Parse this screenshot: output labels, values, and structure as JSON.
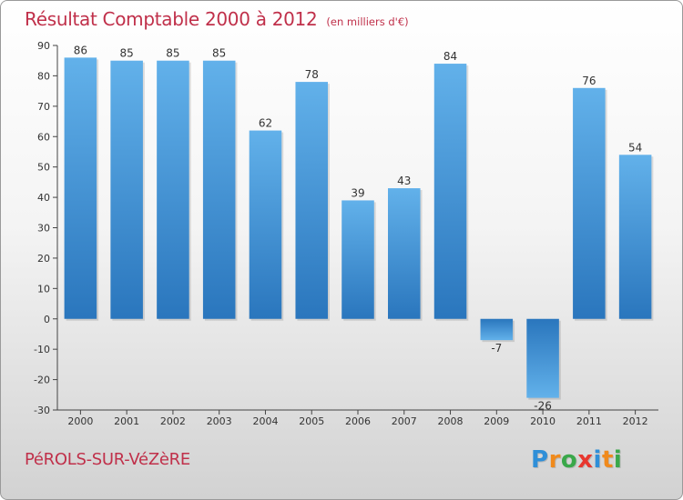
{
  "chart_data": {
    "type": "bar",
    "title": "Résultat Comptable 2000 à 2012",
    "subtitle": "(en milliers d'€)",
    "categories": [
      "2000",
      "2001",
      "2002",
      "2003",
      "2004",
      "2005",
      "2006",
      "2007",
      "2008",
      "2009",
      "2010",
      "2011",
      "2012"
    ],
    "values": [
      86,
      85,
      85,
      85,
      62,
      78,
      39,
      43,
      84,
      -7,
      -26,
      76,
      54
    ],
    "ylim": [
      -30,
      90
    ],
    "yticks": [
      90,
      80,
      70,
      60,
      50,
      40,
      30,
      20,
      10,
      0,
      -10,
      -20,
      -30
    ],
    "grid": false,
    "bar_color": "#3a8fd6",
    "bar_color_light": "#62b1ea",
    "bar_color_dark": "#2a76bd"
  },
  "commune": "PéROLS-SUR-VéZèRE",
  "logo": {
    "letters": [
      "P",
      "r",
      "o",
      "x",
      "i",
      "t",
      "i"
    ],
    "colors": [
      "#2f8fd8",
      "#f08a1c",
      "#3aa84a",
      "#e8372f",
      "#2f8fd8",
      "#f08a1c",
      "#3aa84a"
    ]
  }
}
